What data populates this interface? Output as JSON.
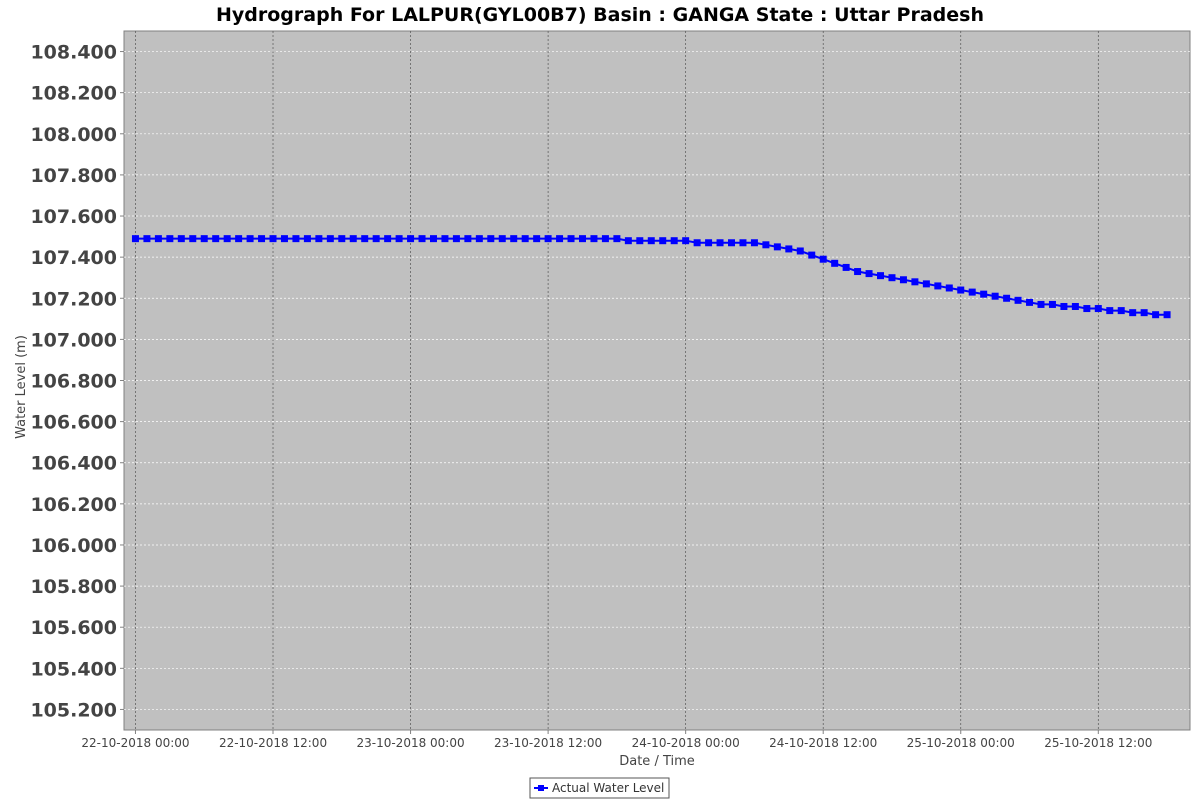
{
  "chart_data": {
    "type": "line",
    "title": "Hydrograph For LALPUR(GYL00B7) Basin : GANGA State : Uttar Pradesh",
    "xlabel": "Date / Time",
    "ylabel": "Water Level (m)",
    "ylim": [
      105.1,
      108.5
    ],
    "yticks": [
      "105.200",
      "105.400",
      "105.600",
      "105.800",
      "106.000",
      "106.200",
      "106.400",
      "106.600",
      "106.800",
      "107.000",
      "107.200",
      "107.400",
      "107.600",
      "107.800",
      "108.000",
      "108.200",
      "108.400"
    ],
    "xticks": [
      "22-10-2018 00:00",
      "22-10-2018 12:00",
      "23-10-2018 00:00",
      "23-10-2018 12:00",
      "24-10-2018 00:00",
      "24-10-2018 12:00",
      "25-10-2018 00:00",
      "25-10-2018 12:00"
    ],
    "xrange_hours": [
      -1,
      92
    ],
    "hours_step": 1,
    "grid": true,
    "legend": "bottom-center",
    "plot_background": "#c0c0c0",
    "series": [
      {
        "name": "Actual Water Level",
        "color": "#0000ff",
        "values": [
          107.49,
          107.49,
          107.49,
          107.49,
          107.49,
          107.49,
          107.49,
          107.49,
          107.49,
          107.49,
          107.49,
          107.49,
          107.49,
          107.49,
          107.49,
          107.49,
          107.49,
          107.49,
          107.49,
          107.49,
          107.49,
          107.49,
          107.49,
          107.49,
          107.49,
          107.49,
          107.49,
          107.49,
          107.49,
          107.49,
          107.49,
          107.49,
          107.49,
          107.49,
          107.49,
          107.49,
          107.49,
          107.49,
          107.49,
          107.49,
          107.49,
          107.49,
          107.49,
          107.48,
          107.48,
          107.48,
          107.48,
          107.48,
          107.48,
          107.47,
          107.47,
          107.47,
          107.47,
          107.47,
          107.47,
          107.46,
          107.45,
          107.44,
          107.43,
          107.41,
          107.39,
          107.37,
          107.35,
          107.33,
          107.32,
          107.31,
          107.3,
          107.29,
          107.28,
          107.27,
          107.26,
          107.25,
          107.24,
          107.23,
          107.22,
          107.21,
          107.2,
          107.19,
          107.18,
          107.17,
          107.17,
          107.16,
          107.16,
          107.15,
          107.15,
          107.14,
          107.14,
          107.13,
          107.13,
          107.12,
          107.12
        ]
      }
    ]
  }
}
